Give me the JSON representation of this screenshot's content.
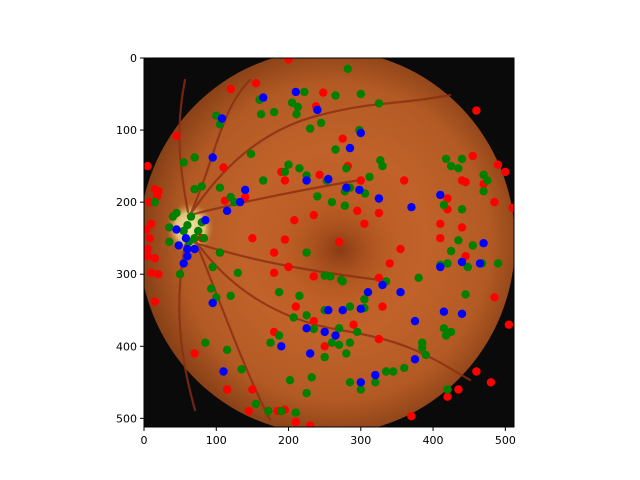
{
  "chart_data": {
    "type": "scatter",
    "title": "",
    "xlabel": "",
    "ylabel": "",
    "xlim": [
      0,
      512
    ],
    "ylim": [
      512,
      0
    ],
    "y_inverted": true,
    "grid": false,
    "legend": "none",
    "background": "fundus photograph (retina image) displayed with imshow",
    "x_ticks": [
      0,
      100,
      200,
      300,
      400,
      500
    ],
    "y_ticks": [
      0,
      100,
      200,
      300,
      400,
      500
    ],
    "x_tick_labels": [
      "0",
      "100",
      "200",
      "300",
      "400",
      "500"
    ],
    "y_tick_labels": [
      "0",
      "100",
      "200",
      "300",
      "400",
      "500"
    ],
    "series": [
      {
        "color": "#ff0000",
        "points": [
          [
            200,
            2
          ],
          [
            155,
            35
          ],
          [
            120,
            43
          ],
          [
            248,
            48
          ],
          [
            238,
            67
          ],
          [
            460,
            73
          ],
          [
            45,
            108
          ],
          [
            275,
            112
          ],
          [
            455,
            136
          ],
          [
            5,
            150
          ],
          [
            490,
            148
          ],
          [
            282,
            150
          ],
          [
            110,
            152
          ],
          [
            190,
            158
          ],
          [
            243,
            162
          ],
          [
            440,
            170
          ],
          [
            445,
            172
          ],
          [
            195,
            170
          ],
          [
            300,
            170
          ],
          [
            360,
            170
          ],
          [
            500,
            158
          ],
          [
            15,
            182
          ],
          [
            18,
            192
          ],
          [
            140,
            193
          ],
          [
            112,
            198
          ],
          [
            420,
            195
          ],
          [
            20,
            185
          ],
          [
            8,
            200
          ],
          [
            470,
            175
          ],
          [
            420,
            210
          ],
          [
            295,
            212
          ],
          [
            325,
            215
          ],
          [
            235,
            218
          ],
          [
            208,
            225
          ],
          [
            305,
            230
          ],
          [
            10,
            230
          ],
          [
            410,
            230
          ],
          [
            440,
            235
          ],
          [
            485,
            200
          ],
          [
            510,
            208
          ],
          [
            3,
            238
          ],
          [
            8,
            250
          ],
          [
            150,
            250
          ],
          [
            195,
            252
          ],
          [
            80,
            250
          ],
          [
            5,
            265
          ],
          [
            270,
            255
          ],
          [
            410,
            250
          ],
          [
            355,
            265
          ],
          [
            180,
            270
          ],
          [
            5,
            275
          ],
          [
            15,
            278
          ],
          [
            445,
            275
          ],
          [
            200,
            290
          ],
          [
            340,
            285
          ],
          [
            10,
            298
          ],
          [
            20,
            300
          ],
          [
            235,
            303
          ],
          [
            325,
            305
          ],
          [
            180,
            298
          ],
          [
            210,
            345
          ],
          [
            330,
            345
          ],
          [
            15,
            338
          ],
          [
            485,
            332
          ],
          [
            235,
            365
          ],
          [
            290,
            370
          ],
          [
            325,
            390
          ],
          [
            70,
            410
          ],
          [
            180,
            380
          ],
          [
            250,
            400
          ],
          [
            505,
            370
          ],
          [
            460,
            435
          ],
          [
            115,
            460
          ],
          [
            420,
            470
          ],
          [
            435,
            460
          ],
          [
            145,
            490
          ],
          [
            185,
            490
          ],
          [
            195,
            488
          ],
          [
            370,
            497
          ],
          [
            210,
            505
          ],
          [
            230,
            510
          ],
          [
            480,
            450
          ],
          [
            150,
            460
          ]
        ]
      },
      {
        "color": "#008000",
        "points": [
          [
            282,
            15
          ],
          [
            160,
            58
          ],
          [
            205,
            62
          ],
          [
            222,
            47
          ],
          [
            265,
            52
          ],
          [
            300,
            50
          ],
          [
            325,
            63
          ],
          [
            213,
            68
          ],
          [
            211,
            78
          ],
          [
            162,
            78
          ],
          [
            180,
            75
          ],
          [
            100,
            80
          ],
          [
            105,
            92
          ],
          [
            245,
            90
          ],
          [
            230,
            98
          ],
          [
            298,
            100
          ],
          [
            265,
            127
          ],
          [
            148,
            133
          ],
          [
            70,
            138
          ],
          [
            55,
            145
          ],
          [
            200,
            148
          ],
          [
            215,
            153
          ],
          [
            195,
            158
          ],
          [
            440,
            140
          ],
          [
            418,
            140
          ],
          [
            425,
            150
          ],
          [
            435,
            153
          ],
          [
            330,
            150
          ],
          [
            280,
            153
          ],
          [
            327,
            142
          ],
          [
            312,
            165
          ],
          [
            470,
            162
          ],
          [
            475,
            170
          ],
          [
            470,
            185
          ],
          [
            253,
            170
          ],
          [
            165,
            170
          ],
          [
            225,
            163
          ],
          [
            80,
            178
          ],
          [
            70,
            182
          ],
          [
            105,
            180
          ],
          [
            120,
            193
          ],
          [
            125,
            200
          ],
          [
            15,
            200
          ],
          [
            285,
            180
          ],
          [
            278,
            185
          ],
          [
            306,
            188
          ],
          [
            240,
            192
          ],
          [
            278,
            205
          ],
          [
            415,
            204
          ],
          [
            440,
            210
          ],
          [
            260,
            200
          ],
          [
            45,
            215
          ],
          [
            40,
            220
          ],
          [
            65,
            220
          ],
          [
            60,
            232
          ],
          [
            55,
            240
          ],
          [
            35,
            235
          ],
          [
            70,
            250
          ],
          [
            62,
            255
          ],
          [
            83,
            250
          ],
          [
            75,
            240
          ],
          [
            80,
            228
          ],
          [
            35,
            255
          ],
          [
            225,
            270
          ],
          [
            105,
            270
          ],
          [
            95,
            290
          ],
          [
            435,
            253
          ],
          [
            420,
            285
          ],
          [
            410,
            287
          ],
          [
            448,
            290
          ],
          [
            468,
            285
          ],
          [
            425,
            268
          ],
          [
            490,
            285
          ],
          [
            455,
            260
          ],
          [
            50,
            300
          ],
          [
            130,
            298
          ],
          [
            258,
            303
          ],
          [
            273,
            308
          ],
          [
            250,
            302
          ],
          [
            275,
            310
          ],
          [
            93,
            320
          ],
          [
            100,
            332
          ],
          [
            120,
            330
          ],
          [
            335,
            310
          ],
          [
            380,
            305
          ],
          [
            445,
            328
          ],
          [
            187,
            325
          ],
          [
            215,
            330
          ],
          [
            305,
            335
          ],
          [
            305,
            347
          ],
          [
            285,
            345
          ],
          [
            250,
            350
          ],
          [
            207,
            360
          ],
          [
            225,
            357
          ],
          [
            270,
            375
          ],
          [
            235,
            376
          ],
          [
            187,
            385
          ],
          [
            175,
            395
          ],
          [
            260,
            395
          ],
          [
            270,
            398
          ],
          [
            285,
            395
          ],
          [
            280,
            410
          ],
          [
            295,
            380
          ],
          [
            415,
            375
          ],
          [
            425,
            380
          ],
          [
            418,
            385
          ],
          [
            385,
            402
          ],
          [
            390,
            412
          ],
          [
            335,
            435
          ],
          [
            360,
            430
          ],
          [
            385,
            395
          ],
          [
            250,
            415
          ],
          [
            285,
            450
          ],
          [
            320,
            450
          ],
          [
            345,
            435
          ],
          [
            300,
            460
          ],
          [
            232,
            443
          ],
          [
            202,
            447
          ],
          [
            225,
            465
          ],
          [
            85,
            395
          ],
          [
            135,
            432
          ],
          [
            115,
            405
          ],
          [
            155,
            480
          ],
          [
            172,
            490
          ],
          [
            210,
            492
          ],
          [
            420,
            460
          ],
          [
            190,
            490
          ]
        ]
      },
      {
        "color": "#0000ff",
        "points": [
          [
            210,
            47
          ],
          [
            165,
            55
          ],
          [
            240,
            72
          ],
          [
            108,
            84
          ],
          [
            300,
            104
          ],
          [
            95,
            138
          ],
          [
            285,
            125
          ],
          [
            225,
            170
          ],
          [
            255,
            168
          ],
          [
            280,
            180
          ],
          [
            298,
            183
          ],
          [
            140,
            183
          ],
          [
            133,
            200
          ],
          [
            410,
            190
          ],
          [
            115,
            212
          ],
          [
            325,
            195
          ],
          [
            85,
            225
          ],
          [
            370,
            207
          ],
          [
            45,
            238
          ],
          [
            48,
            260
          ],
          [
            58,
            250
          ],
          [
            60,
            265
          ],
          [
            70,
            265
          ],
          [
            60,
            275
          ],
          [
            55,
            285
          ],
          [
            310,
            325
          ],
          [
            355,
            325
          ],
          [
            330,
            315
          ],
          [
            410,
            290
          ],
          [
            470,
            257
          ],
          [
            440,
            283
          ],
          [
            465,
            285
          ],
          [
            95,
            340
          ],
          [
            225,
            375
          ],
          [
            255,
            350
          ],
          [
            275,
            350
          ],
          [
            375,
            365
          ],
          [
            250,
            380
          ],
          [
            300,
            450
          ],
          [
            320,
            440
          ],
          [
            375,
            418
          ],
          [
            110,
            435
          ],
          [
            190,
            400
          ],
          [
            440,
            355
          ],
          [
            415,
            352
          ],
          [
            300,
            348
          ],
          [
            265,
            385
          ],
          [
            230,
            410
          ]
        ]
      }
    ]
  }
}
